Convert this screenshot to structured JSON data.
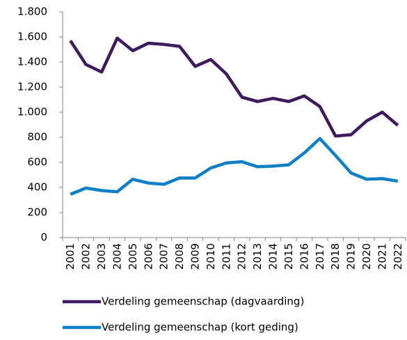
{
  "chart_data": {
    "type": "line",
    "categories": [
      "2001",
      "2002",
      "2003",
      "2004",
      "2005",
      "2006",
      "2007",
      "2008",
      "2009",
      "2010",
      "2011",
      "2012",
      "2013",
      "2014",
      "2015",
      "2016",
      "2017",
      "2018",
      "2019",
      "2020",
      "2021",
      "2022"
    ],
    "series": [
      {
        "name": "Verdeling gemeenschap (dagvaarding)",
        "color": "#3f1b5e",
        "values": [
          1570,
          1380,
          1320,
          1590,
          1490,
          1550,
          1540,
          1525,
          1365,
          1420,
          1305,
          1120,
          1085,
          1110,
          1085,
          1130,
          1045,
          810,
          820,
          930,
          1000,
          895
        ]
      },
      {
        "name": "Verdeling gemeenschap (kort geding)",
        "color": "#0f80c8",
        "values": [
          345,
          395,
          375,
          365,
          465,
          435,
          425,
          475,
          475,
          555,
          595,
          605,
          565,
          570,
          580,
          675,
          790,
          655,
          515,
          465,
          470,
          450
        ]
      }
    ],
    "ylim": [
      0,
      1800
    ],
    "yticks": [
      0,
      200,
      400,
      600,
      800,
      {
        "value": 1000,
        "label": "1.000"
      },
      {
        "value": 1200,
        "label": "1.200"
      },
      {
        "value": 1400,
        "label": "1.400"
      },
      {
        "value": 1600,
        "label": "1.600"
      },
      {
        "value": 1800,
        "label": "1.800"
      }
    ],
    "grid": false,
    "legend": "bottom"
  }
}
